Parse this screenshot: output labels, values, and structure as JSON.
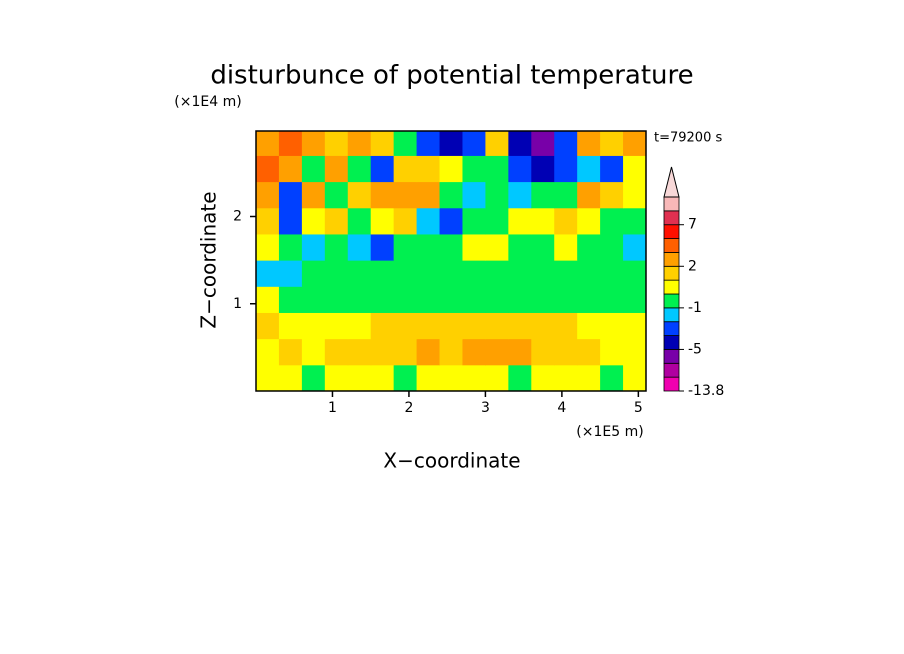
{
  "chart_data": {
    "type": "contour",
    "title": "disturbunce of potential temperature",
    "ylabel": "Z−coordinate",
    "yunit": "(×1E4 m)",
    "xlabel": "X−coordinate",
    "xunit": "(×1E5 m)",
    "time_label": "t=79200 s",
    "xlim": [
      0,
      5.1
    ],
    "ylim": [
      0,
      2.98
    ],
    "xticks": [
      1,
      2,
      3,
      4,
      5
    ],
    "yticks": [
      1,
      2
    ],
    "x": [
      0.15,
      0.45,
      0.75,
      1.05,
      1.35,
      1.65,
      1.95,
      2.25,
      2.55,
      2.85,
      3.15,
      3.45,
      3.75,
      4.05,
      4.35,
      4.65,
      4.95
    ],
    "y": [
      0.15,
      0.45,
      0.75,
      1.05,
      1.35,
      1.65,
      1.95,
      2.25,
      2.55,
      2.85
    ],
    "z": [
      [
        0.5,
        0.5,
        -0.5,
        0.5,
        0.5,
        0.5,
        -0.5,
        0.5,
        0.5,
        0.5,
        0.5,
        -0.5,
        0.5,
        0.5,
        0.5,
        -0.5,
        0.5
      ],
      [
        0.5,
        1.5,
        0.5,
        1.5,
        1.5,
        1.5,
        1.5,
        2.5,
        1.5,
        2.5,
        2.5,
        2.5,
        1.5,
        1.5,
        1.5,
        0.5,
        0.5
      ],
      [
        1.5,
        0.5,
        0.5,
        0.5,
        0.5,
        1.5,
        1.5,
        1.5,
        1.5,
        1.5,
        1.5,
        1.5,
        1.5,
        1.5,
        0.5,
        0.5,
        0.5
      ],
      [
        0.5,
        -0.5,
        -0.5,
        -0.5,
        -0.5,
        -0.5,
        -0.5,
        -0.5,
        -0.5,
        -0.5,
        -0.5,
        -0.5,
        -0.5,
        -0.5,
        -0.5,
        -0.5,
        -0.5
      ],
      [
        -1.5,
        -1.5,
        -0.5,
        -0.5,
        -0.5,
        -0.5,
        -0.5,
        -0.5,
        -0.5,
        -0.5,
        -0.5,
        -0.5,
        -0.5,
        -0.5,
        -0.5,
        -0.5,
        -0.5
      ],
      [
        0.5,
        -0.5,
        -1.5,
        -0.5,
        -1.5,
        -2.5,
        -0.5,
        -0.5,
        -0.5,
        0.5,
        0.5,
        -0.5,
        -0.5,
        0.5,
        -0.5,
        -0.5,
        -1.5
      ],
      [
        1.5,
        -2.5,
        0.5,
        1.5,
        -0.5,
        0.5,
        1.5,
        -1.5,
        -2.5,
        -0.5,
        -0.5,
        0.5,
        0.5,
        1.5,
        0.5,
        -0.5,
        -0.5
      ],
      [
        2.5,
        -2.5,
        2.5,
        -0.5,
        1.5,
        2.5,
        2.5,
        2.5,
        -0.5,
        -1.5,
        -0.5,
        -1.5,
        -0.5,
        -0.5,
        2.5,
        1.5,
        0.5
      ],
      [
        3.5,
        2.5,
        -0.5,
        2.5,
        -0.5,
        -2.5,
        1.5,
        1.5,
        0.5,
        -0.5,
        -0.5,
        -2.5,
        -4,
        -2.5,
        -1.5,
        -2.5,
        0.5
      ],
      [
        2.5,
        3.5,
        2.5,
        1.5,
        2.5,
        1.5,
        -0.5,
        -2.5,
        -4,
        -2.5,
        1.5,
        -4,
        -6,
        -2.5,
        2.5,
        1.5,
        2.5
      ]
    ],
    "levels": [
      -13.8,
      -9,
      -7,
      -5,
      -3,
      -2,
      -1,
      0,
      1,
      2,
      3,
      5,
      7,
      10,
      13
    ],
    "colors": [
      "#f000b0",
      "#b000a0",
      "#7800a8",
      "#0000b4",
      "#0040ff",
      "#00c8ff",
      "#00f050",
      "#ffff00",
      "#ffd000",
      "#ffa000",
      "#ff6000",
      "#ff1000",
      "#e03050",
      "#f8b8b8"
    ],
    "extend_color": "#f8d8d8",
    "colorbar_ticks": [
      -13.8,
      -5,
      -1,
      2,
      7
    ]
  }
}
